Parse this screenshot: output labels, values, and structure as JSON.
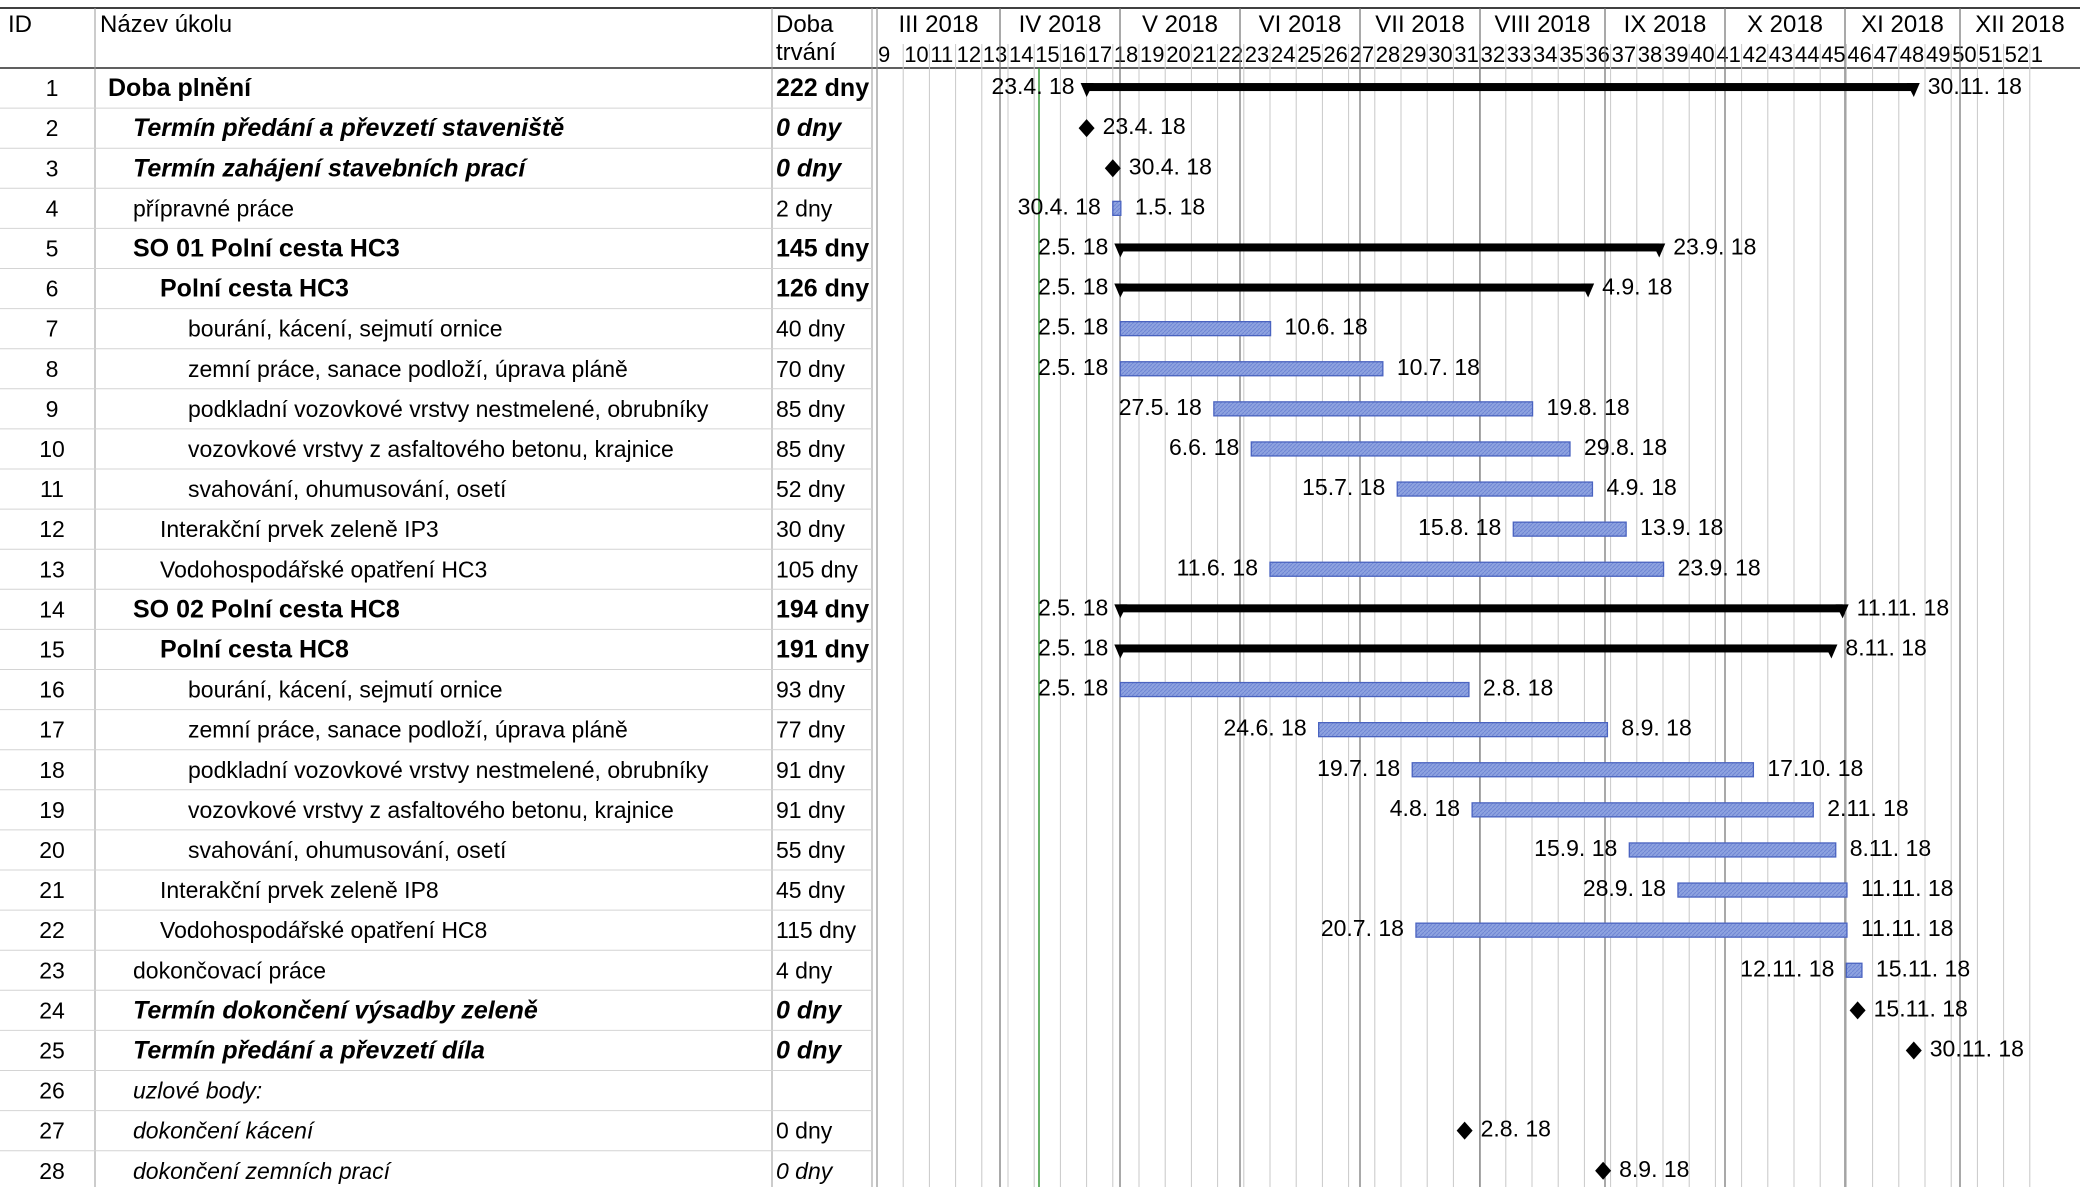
{
  "headers": {
    "id": "ID",
    "name": "Název úkolu",
    "duration_l1": "Doba",
    "duration_l2": "trvání"
  },
  "colors": {
    "task_bar": "#8ea3e0",
    "task_bar_border": "#4a63c0",
    "summary_bar": "#000000",
    "today_line": "#3a9a3a",
    "grid": "#c8c8c8"
  },
  "chart_data": {
    "type": "gantt",
    "months": [
      "III 2018",
      "IV 2018",
      "V 2018",
      "VI 2018",
      "VII 2018",
      "VIII 2018",
      "IX 2018",
      "X 2018",
      "XI 2018",
      "XII 2018"
    ],
    "weeks": [
      "9",
      "10",
      "11",
      "12",
      "13",
      "14",
      "15",
      "16",
      "17",
      "18",
      "19",
      "20",
      "21",
      "22",
      "23",
      "24",
      "25",
      "26",
      "27",
      "28",
      "29",
      "30",
      "31",
      "32",
      "33",
      "34",
      "35",
      "36",
      "37",
      "38",
      "39",
      "40",
      "41",
      "42",
      "43",
      "44",
      "45",
      "46",
      "47",
      "48",
      "49",
      "50",
      "51",
      "52",
      "1"
    ],
    "tasks": [
      {
        "id": "1",
        "name": "Doba plnění",
        "duration": "222 dny",
        "style": "summary",
        "start": "2018-04-23",
        "end": "2018-11-30",
        "start_label": "23.4. 18",
        "end_label": "30.11. 18"
      },
      {
        "id": "2",
        "name": "Termín předání a převzetí staveniště",
        "duration": "0 dny",
        "style": "milestone-bi",
        "start": "2018-04-23",
        "end": "2018-04-23",
        "end_label": "23.4. 18"
      },
      {
        "id": "3",
        "name": "Termín zahájení stavebních prací",
        "duration": "0 dny",
        "style": "milestone-bi",
        "start": "2018-04-30",
        "end": "2018-04-30",
        "end_label": "30.4. 18"
      },
      {
        "id": "4",
        "name": "přípravné práce",
        "duration": "2 dny",
        "style": "task",
        "start": "2018-04-30",
        "end": "2018-05-01",
        "start_label": "30.4. 18",
        "end_label": "1.5. 18"
      },
      {
        "id": "5",
        "name": "SO 01 Polní cesta HC3",
        "duration": "145 dny",
        "style": "summary",
        "start": "2018-05-02",
        "end": "2018-09-23",
        "start_label": "2.5. 18",
        "end_label": "23.9. 18"
      },
      {
        "id": "6",
        "name": "Polní cesta HC3",
        "duration": "126 dny",
        "style": "summary",
        "start": "2018-05-02",
        "end": "2018-09-04",
        "start_label": "2.5. 18",
        "end_label": "4.9. 18"
      },
      {
        "id": "7",
        "name": "bourání, kácení, sejmutí ornice",
        "duration": "40 dny",
        "style": "task",
        "start": "2018-05-02",
        "end": "2018-06-10",
        "start_label": "2.5. 18",
        "end_label": "10.6. 18"
      },
      {
        "id": "8",
        "name": "zemní práce, sanace podloží, úprava pláně",
        "duration": "70 dny",
        "style": "task",
        "start": "2018-05-02",
        "end": "2018-07-10",
        "start_label": "2.5. 18",
        "end_label": "10.7. 18"
      },
      {
        "id": "9",
        "name": "podkladní vozovkové vrstvy nestmelené, obrubníky",
        "duration": "85 dny",
        "style": "task",
        "start": "2018-05-27",
        "end": "2018-08-19",
        "start_label": "27.5. 18",
        "end_label": "19.8. 18"
      },
      {
        "id": "10",
        "name": "vozovkové vrstvy z asfaltového betonu, krajnice",
        "duration": "85 dny",
        "style": "task",
        "start": "2018-06-06",
        "end": "2018-08-29",
        "start_label": "6.6. 18",
        "end_label": "29.8. 18"
      },
      {
        "id": "11",
        "name": "svahování, ohumusování, osetí",
        "duration": "52 dny",
        "style": "task",
        "start": "2018-07-15",
        "end": "2018-09-04",
        "start_label": "15.7. 18",
        "end_label": "4.9. 18"
      },
      {
        "id": "12",
        "name": "Interakční prvek zeleně IP3",
        "duration": "30 dny",
        "style": "task",
        "start": "2018-08-15",
        "end": "2018-09-13",
        "start_label": "15.8. 18",
        "end_label": "13.9. 18"
      },
      {
        "id": "13",
        "name": "Vodohospodářské opatření HC3",
        "duration": "105 dny",
        "style": "task",
        "start": "2018-06-11",
        "end": "2018-09-23",
        "start_label": "11.6. 18",
        "end_label": "23.9. 18"
      },
      {
        "id": "14",
        "name": "SO 02 Polní cesta HC8",
        "duration": "194 dny",
        "style": "summary",
        "start": "2018-05-02",
        "end": "2018-11-11",
        "start_label": "2.5. 18",
        "end_label": "11.11. 18"
      },
      {
        "id": "15",
        "name": "Polní cesta HC8",
        "duration": "191 dny",
        "style": "summary",
        "start": "2018-05-02",
        "end": "2018-11-08",
        "start_label": "2.5. 18",
        "end_label": "8.11. 18"
      },
      {
        "id": "16",
        "name": "bourání, kácení, sejmutí ornice",
        "duration": "93 dny",
        "style": "task",
        "start": "2018-05-02",
        "end": "2018-08-02",
        "start_label": "2.5. 18",
        "end_label": "2.8. 18"
      },
      {
        "id": "17",
        "name": "zemní práce, sanace podloží, úprava pláně",
        "duration": "77 dny",
        "style": "task",
        "start": "2018-06-24",
        "end": "2018-09-08",
        "start_label": "24.6. 18",
        "end_label": "8.9. 18"
      },
      {
        "id": "18",
        "name": "podkladní vozovkové vrstvy nestmelené, obrubníky",
        "duration": "91 dny",
        "style": "task",
        "start": "2018-07-19",
        "end": "2018-10-17",
        "start_label": "19.7. 18",
        "end_label": "17.10. 18"
      },
      {
        "id": "19",
        "name": "vozovkové vrstvy z asfaltového betonu, krajnice",
        "duration": "91 dny",
        "style": "task",
        "start": "2018-08-04",
        "end": "2018-11-02",
        "start_label": "4.8. 18",
        "end_label": "2.11. 18"
      },
      {
        "id": "20",
        "name": "svahování, ohumusování, osetí",
        "duration": "55 dny",
        "style": "task",
        "start": "2018-09-15",
        "end": "2018-11-08",
        "start_label": "15.9. 18",
        "end_label": "8.11. 18"
      },
      {
        "id": "21",
        "name": "Interakční prvek zeleně IP8",
        "duration": "45 dny",
        "style": "task",
        "start": "2018-09-28",
        "end": "2018-11-11",
        "start_label": "28.9. 18",
        "end_label": "11.11. 18"
      },
      {
        "id": "22",
        "name": "Vodohospodářské opatření HC8",
        "duration": "115 dny",
        "style": "task",
        "start": "2018-07-20",
        "end": "2018-11-11",
        "start_label": "20.7. 18",
        "end_label": "11.11. 18"
      },
      {
        "id": "23",
        "name": "dokončovací práce",
        "duration": "4 dny",
        "style": "task",
        "start": "2018-11-12",
        "end": "2018-11-15",
        "start_label": "12.11. 18",
        "end_label": "15.11. 18"
      },
      {
        "id": "24",
        "name": "Termín dokončení výsadby zeleně",
        "duration": "0 dny",
        "style": "milestone-bi",
        "start": "2018-11-15",
        "end": "2018-11-15",
        "end_label": "15.11. 18"
      },
      {
        "id": "25",
        "name": "Termín předání a převzetí díla",
        "duration": "0 dny",
        "style": "milestone-bi",
        "start": "2018-11-30",
        "end": "2018-11-30",
        "end_label": "30.11. 18"
      },
      {
        "id": "26",
        "name": "uzlové body:",
        "duration": "",
        "style": "note",
        "start": null,
        "end": null
      },
      {
        "id": "27",
        "name": "dokončení kácení",
        "duration": "0 dny",
        "style": "milestone-i",
        "start": "2018-08-02",
        "end": "2018-08-02",
        "end_label": "2.8. 18"
      },
      {
        "id": "28",
        "name": "dokončení zemních prací",
        "duration": "0 dny",
        "style": "milestone-i",
        "start": "2018-09-08",
        "end": "2018-09-08",
        "end_label": "8.9. 18"
      }
    ]
  }
}
